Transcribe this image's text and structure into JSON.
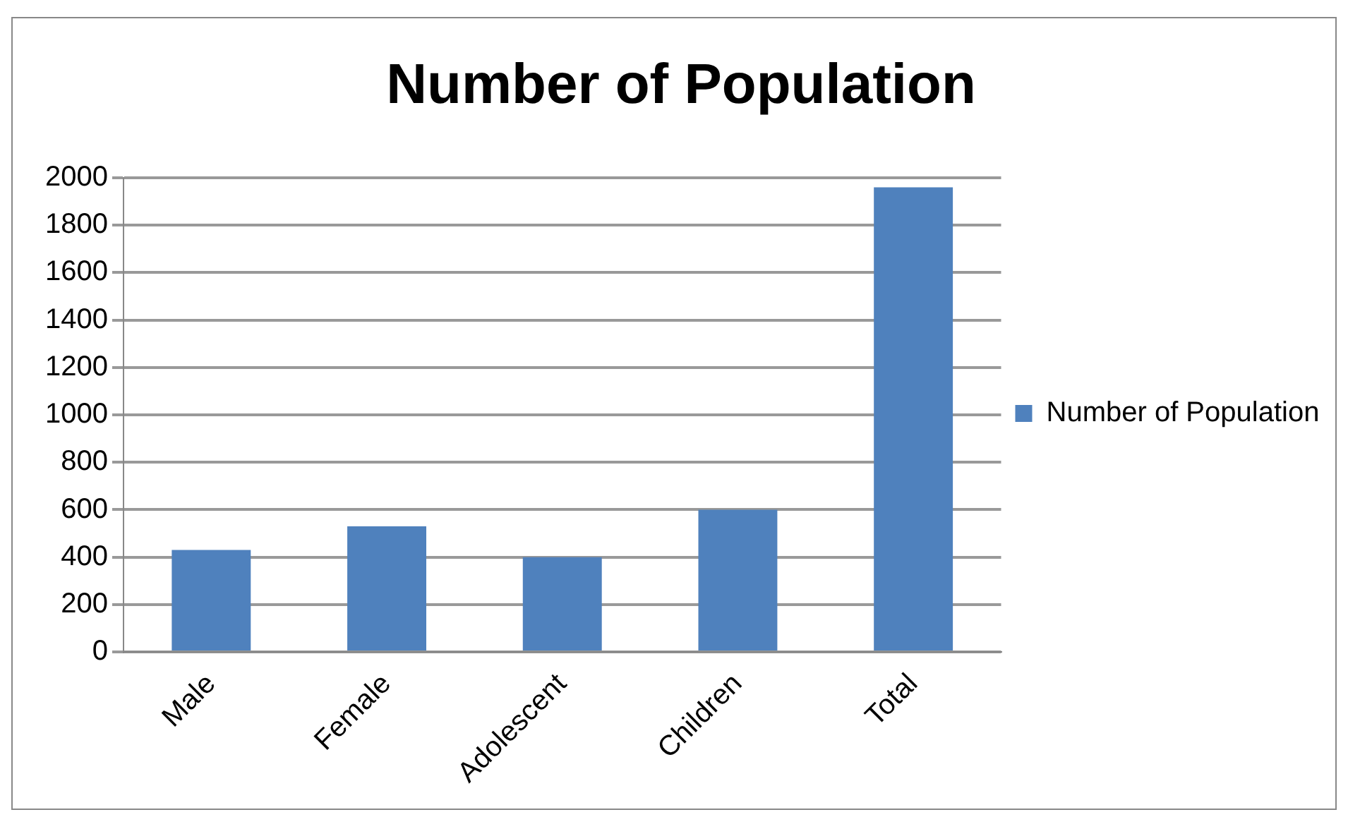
{
  "chart_data": {
    "type": "bar",
    "title": "Number of Population",
    "categories": [
      "Male",
      "Female",
      "Adolescent",
      "Children",
      "Total"
    ],
    "series": [
      {
        "name": "Number of Population",
        "color": "#4f81bd",
        "values": [
          430,
          530,
          400,
          600,
          1960
        ]
      }
    ],
    "ylim": [
      0,
      2000
    ],
    "yticks": [
      0,
      200,
      400,
      600,
      800,
      1000,
      1200,
      1400,
      1600,
      1800,
      2000
    ],
    "grid": "y",
    "legend": "right"
  }
}
